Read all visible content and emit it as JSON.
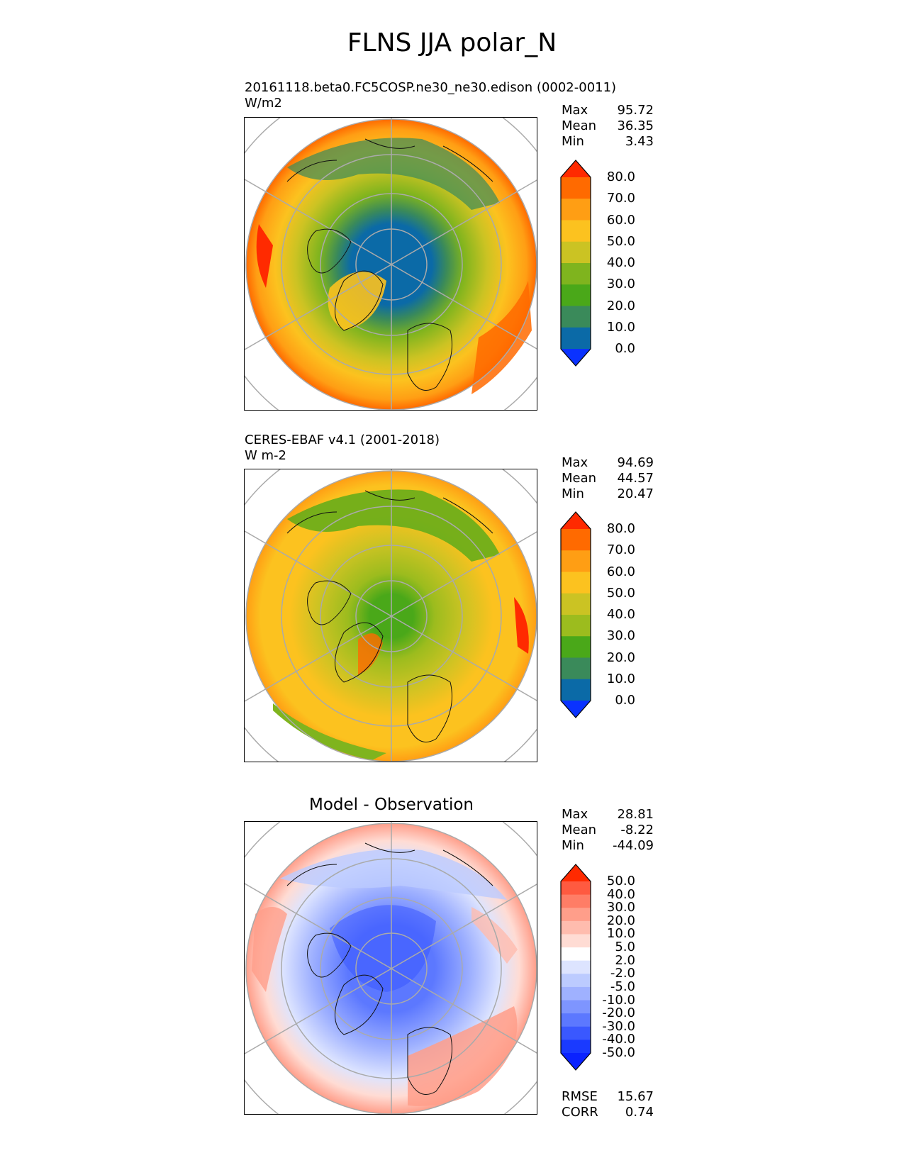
{
  "figure": {
    "title": "FLNS JJA polar_N"
  },
  "panels": [
    {
      "id": "model",
      "label_line1": "20161118.beta0.FC5COSP.ne30_ne30.edison (0002-0011)",
      "label_line2": "W/m2",
      "stats": [
        {
          "name": "Max",
          "value": "95.72"
        },
        {
          "name": "Mean",
          "value": "36.35"
        },
        {
          "name": "Min",
          "value": "3.43"
        }
      ],
      "colorbar": {
        "levels": [
          "80.0",
          "70.0",
          "60.0",
          "50.0",
          "40.0",
          "30.0",
          "20.0",
          "10.0",
          "0.0"
        ],
        "colors": [
          "#ff2a00",
          "#ff6a00",
          "#ff9e14",
          "#fcc21f",
          "#cbc323",
          "#7fb41e",
          "#4aa819",
          "#3a8a5a",
          "#0b6aa7",
          "#0a32ff"
        ]
      }
    },
    {
      "id": "obs",
      "label_line1": "CERES-EBAF v4.1 (2001-2018)",
      "label_line2": "W m-2",
      "stats": [
        {
          "name": "Max",
          "value": "94.69"
        },
        {
          "name": "Mean",
          "value": "44.57"
        },
        {
          "name": "Min",
          "value": "20.47"
        }
      ],
      "colorbar": {
        "levels": [
          "80.0",
          "70.0",
          "60.0",
          "50.0",
          "40.0",
          "30.0",
          "20.0",
          "10.0",
          "0.0"
        ],
        "colors": [
          "#ff2a00",
          "#ff6a00",
          "#ff9e14",
          "#fcc21f",
          "#cbc323",
          "#9cbc1e",
          "#4aa819",
          "#3a8a5a",
          "#0b6aa7",
          "#0a32ff"
        ]
      }
    },
    {
      "id": "diff",
      "title": "Model - Observation",
      "stats": [
        {
          "name": "Max",
          "value": "28.81"
        },
        {
          "name": "Mean",
          "value": "-8.22"
        },
        {
          "name": "Min",
          "value": "-44.09"
        }
      ],
      "extra_stats": [
        {
          "name": "RMSE",
          "value": "15.67"
        },
        {
          "name": "CORR",
          "value": "0.74"
        }
      ],
      "colorbar": {
        "levels": [
          "50.0",
          "40.0",
          "30.0",
          "20.0",
          "10.0",
          "5.0",
          "2.0",
          "-2.0",
          "-5.0",
          "-10.0",
          "-20.0",
          "-30.0",
          "-40.0",
          "-50.0"
        ],
        "colors": [
          "#ff2a00",
          "#ff5a40",
          "#ff7d66",
          "#ff9e8a",
          "#ffbcae",
          "#ffdcd4",
          "#ffffff",
          "#dde4ff",
          "#bccbff",
          "#9fb1ff",
          "#7e95ff",
          "#5c78ff",
          "#3a58ff",
          "#1a3aff",
          "#0a22ff"
        ]
      }
    }
  ]
}
